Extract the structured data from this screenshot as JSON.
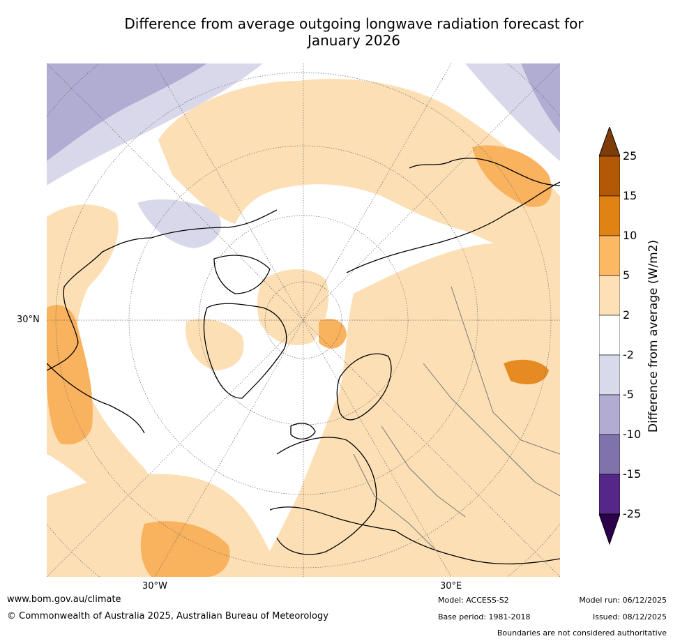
{
  "title": {
    "line1": "Difference from average outgoing longwave radiation forecast for",
    "line2": "January 2026"
  },
  "map": {
    "projection": "north-polar-stereographic",
    "lat_label": "30°N",
    "lon_labels": [
      "30°W",
      "30°E"
    ],
    "anomaly_colors": {
      "weak_positive": "#fddfb5",
      "moderate_positive": "#f9b25e",
      "strong_positive": "#e58b22",
      "weak_negative": "#d8d8ea",
      "moderate_negative": "#b1acd2",
      "neutral": "#ffffff"
    }
  },
  "colorbar": {
    "title": "Difference from average (W/m2)",
    "levels": [
      "25",
      "15",
      "10",
      "5",
      "2",
      "-2",
      "-5",
      "-10",
      "-15",
      "-25"
    ],
    "colors": [
      "#7f3b08",
      "#b35806",
      "#e08214",
      "#fdb863",
      "#fee0b6",
      "#ffffff",
      "#d8daeb",
      "#b2abd2",
      "#8073ac",
      "#542788",
      "#2d004b"
    ]
  },
  "footer": {
    "website": "www.bom.gov.au/climate",
    "copyright": "© Commonwealth of Australia 2025, Australian Bureau of Meteorology",
    "model": "Model: ACCESS-S2",
    "base_period": "Base period: 1981-2018",
    "model_run": "Model run: 06/12/2025",
    "issued": "Issued: 08/12/2025",
    "disclaimer": "Boundaries are not considered authoritative"
  }
}
